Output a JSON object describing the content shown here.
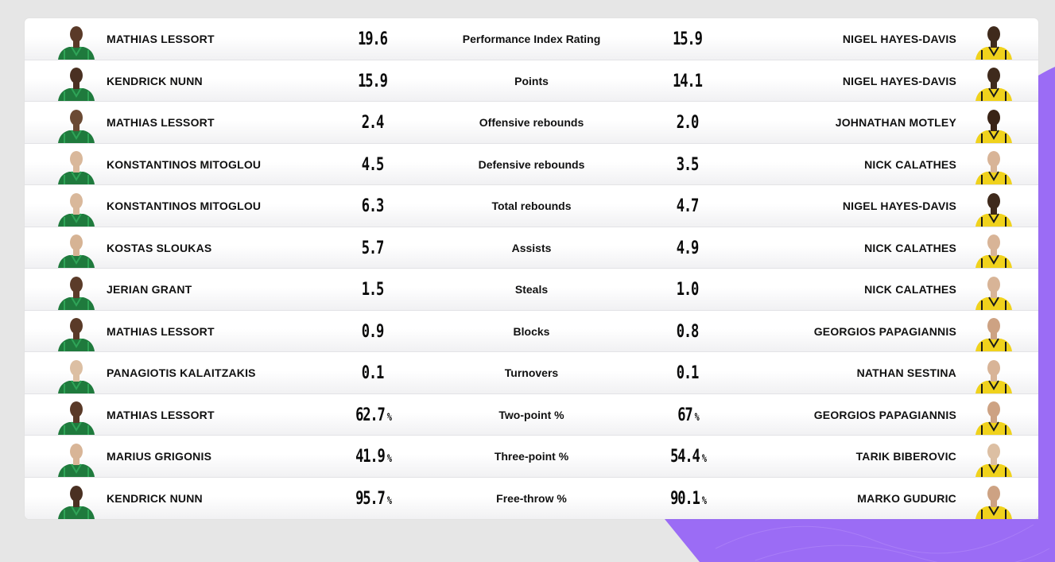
{
  "colors": {
    "page_bg": "#e6e6e6",
    "card_bg": "#ffffff",
    "accent_purple": "#9b6cf5",
    "home_jersey": "#1f7a3d",
    "away_jersey": "#f0d21c"
  },
  "rows": [
    {
      "stat": "Performance Index Rating",
      "home_player": "MATHIAS LESSORT",
      "home_value": "19.6",
      "home_unit": "",
      "away_value": "15.9",
      "away_unit": "",
      "away_player": "NIGEL HAYES-DAVIS"
    },
    {
      "stat": "Points",
      "home_player": "KENDRICK NUNN",
      "home_value": "15.9",
      "home_unit": "",
      "away_value": "14.1",
      "away_unit": "",
      "away_player": "NIGEL HAYES-DAVIS"
    },
    {
      "stat": "Offensive rebounds",
      "home_player": "MATHIAS LESSORT",
      "home_value": "2.4",
      "home_unit": "",
      "away_value": "2.0",
      "away_unit": "",
      "away_player": "JOHNATHAN MOTLEY"
    },
    {
      "stat": "Defensive rebounds",
      "home_player": "KONSTANTINOS MITOGLOU",
      "home_value": "4.5",
      "home_unit": "",
      "away_value": "3.5",
      "away_unit": "",
      "away_player": "NICK CALATHES"
    },
    {
      "stat": "Total rebounds",
      "home_player": "KONSTANTINOS MITOGLOU",
      "home_value": "6.3",
      "home_unit": "",
      "away_value": "4.7",
      "away_unit": "",
      "away_player": "NIGEL HAYES-DAVIS"
    },
    {
      "stat": "Assists",
      "home_player": "KOSTAS SLOUKAS",
      "home_value": "5.7",
      "home_unit": "",
      "away_value": "4.9",
      "away_unit": "",
      "away_player": "NICK CALATHES"
    },
    {
      "stat": "Steals",
      "home_player": "JERIAN GRANT",
      "home_value": "1.5",
      "home_unit": "",
      "away_value": "1.0",
      "away_unit": "",
      "away_player": "NICK CALATHES"
    },
    {
      "stat": "Blocks",
      "home_player": "MATHIAS LESSORT",
      "home_value": "0.9",
      "home_unit": "",
      "away_value": "0.8",
      "away_unit": "",
      "away_player": "GEORGIOS PAPAGIANNIS"
    },
    {
      "stat": "Turnovers",
      "home_player": "PANAGIOTIS KALAITZAKIS",
      "home_value": "0.1",
      "home_unit": "",
      "away_value": "0.1",
      "away_unit": "",
      "away_player": "NATHAN SESTINA"
    },
    {
      "stat": "Two-point %",
      "home_player": "MATHIAS LESSORT",
      "home_value": "62.7",
      "home_unit": "%",
      "away_value": "67",
      "away_unit": "%",
      "away_player": "GEORGIOS PAPAGIANNIS"
    },
    {
      "stat": "Three-point %",
      "home_player": "MARIUS GRIGONIS",
      "home_value": "41.9",
      "home_unit": "%",
      "away_value": "54.4",
      "away_unit": "%",
      "away_player": "TARIK BIBEROVIC"
    },
    {
      "stat": "Free-throw %",
      "home_player": "KENDRICK NUNN",
      "home_value": "95.7",
      "home_unit": "%",
      "away_value": "90.1",
      "away_unit": "%",
      "away_player": "MARKO GUDURIC"
    }
  ]
}
